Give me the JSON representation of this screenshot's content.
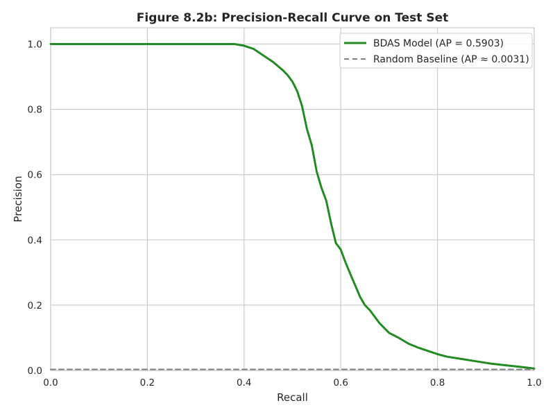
{
  "chart_data": {
    "type": "line",
    "title": "Figure 8.2b: Precision-Recall Curve on Test Set",
    "xlabel": "Recall",
    "ylabel": "Precision",
    "xlim": [
      0.0,
      1.0
    ],
    "ylim": [
      0.0,
      1.05
    ],
    "xticks": [
      "0.0",
      "0.2",
      "0.4",
      "0.6",
      "0.8",
      "1.0"
    ],
    "yticks": [
      "0.0",
      "0.2",
      "0.4",
      "0.6",
      "0.8",
      "1.0"
    ],
    "grid": true,
    "legend_position": "top-right",
    "series": [
      {
        "name": "BDAS Model (AP = 0.5903)",
        "color": "#228b22",
        "style": "solid",
        "x": [
          0.0,
          0.1,
          0.2,
          0.3,
          0.38,
          0.4,
          0.42,
          0.44,
          0.46,
          0.48,
          0.49,
          0.5,
          0.51,
          0.52,
          0.53,
          0.54,
          0.55,
          0.56,
          0.57,
          0.58,
          0.59,
          0.6,
          0.61,
          0.62,
          0.63,
          0.64,
          0.65,
          0.66,
          0.67,
          0.68,
          0.69,
          0.7,
          0.72,
          0.74,
          0.76,
          0.78,
          0.8,
          0.82,
          0.85,
          0.88,
          0.91,
          0.94,
          0.97,
          1.0
        ],
        "y": [
          1.0,
          1.0,
          1.0,
          1.0,
          1.0,
          0.995,
          0.985,
          0.965,
          0.945,
          0.92,
          0.905,
          0.885,
          0.855,
          0.81,
          0.74,
          0.69,
          0.61,
          0.56,
          0.52,
          0.45,
          0.39,
          0.37,
          0.33,
          0.295,
          0.26,
          0.225,
          0.2,
          0.185,
          0.165,
          0.145,
          0.13,
          0.115,
          0.1,
          0.082,
          0.07,
          0.06,
          0.05,
          0.042,
          0.035,
          0.028,
          0.021,
          0.016,
          0.011,
          0.006
        ]
      },
      {
        "name": "Random Baseline (AP ≈ 0.0031)",
        "color": "#808080",
        "style": "dashed",
        "x": [
          0.0,
          1.0
        ],
        "y": [
          0.0031,
          0.0031
        ]
      }
    ]
  }
}
